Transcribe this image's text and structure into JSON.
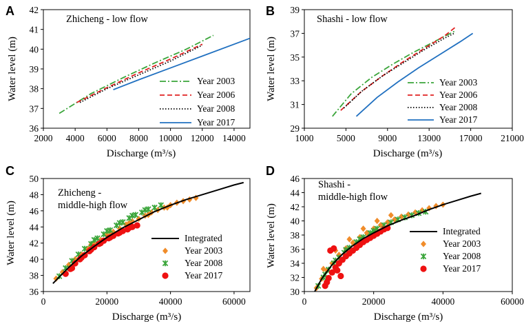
{
  "chart_data": [
    {
      "letter": "A",
      "type": "line",
      "title": "Zhicheng - low flow",
      "xlabel": "Discharge (m³/s)",
      "ylabel": "Water level (m)",
      "xlim": [
        2000,
        15000
      ],
      "ylim": [
        36,
        42
      ],
      "xticks": [
        2000,
        4000,
        6000,
        8000,
        10000,
        12000,
        14000
      ],
      "yticks": [
        36,
        37,
        38,
        39,
        40,
        41,
        42
      ],
      "legend_position": "bottom-right",
      "series": [
        {
          "name": "Year 2003",
          "style": "dashdot",
          "color": "#3aa53a",
          "x": [
            3000,
            5000,
            7000,
            9000,
            11000,
            12700
          ],
          "y": [
            36.75,
            37.75,
            38.55,
            39.3,
            40.0,
            40.7
          ]
        },
        {
          "name": "Year 2006",
          "style": "dash",
          "color": "#e02020",
          "x": [
            4100,
            6000,
            8000,
            10000,
            12000
          ],
          "y": [
            37.3,
            38.05,
            38.8,
            39.5,
            40.25
          ]
        },
        {
          "name": "Year 2008",
          "style": "dot",
          "color": "#000000",
          "x": [
            4300,
            6000,
            8000,
            10000,
            12000
          ],
          "y": [
            37.3,
            38.0,
            38.7,
            39.4,
            40.2
          ]
        },
        {
          "name": "Year 2017",
          "style": "solid",
          "color": "#2070c0",
          "x": [
            6400,
            8000,
            10000,
            12000,
            15000
          ],
          "y": [
            37.95,
            38.45,
            39.05,
            39.65,
            40.55
          ]
        }
      ]
    },
    {
      "letter": "B",
      "type": "line",
      "title": "Shashi - low flow",
      "xlabel": "Discharge (m³/s)",
      "ylabel": "Water level (m)",
      "xlim": [
        1000,
        21000
      ],
      "ylim": [
        29,
        39
      ],
      "xticks": [
        1000,
        5000,
        9000,
        13000,
        17000,
        21000
      ],
      "yticks": [
        29,
        31,
        33,
        35,
        37,
        39
      ],
      "legend_position": "bottom-right",
      "series": [
        {
          "name": "Year 2003",
          "style": "dashdot",
          "color": "#3aa53a",
          "x": [
            3700,
            5500,
            7500,
            9500,
            11500,
            13500,
            15500
          ],
          "y": [
            30.0,
            31.9,
            33.3,
            34.4,
            35.4,
            36.3,
            37.2
          ]
        },
        {
          "name": "Year 2006",
          "style": "dash",
          "color": "#e02020",
          "x": [
            4500,
            6500,
            8500,
            10500,
            12500,
            14500,
            15500
          ],
          "y": [
            30.5,
            32.1,
            33.4,
            34.6,
            35.7,
            36.8,
            37.5
          ]
        },
        {
          "name": "Year 2008",
          "style": "dot",
          "color": "#000000",
          "x": [
            4800,
            6500,
            8500,
            10500,
            12500,
            14500,
            15400
          ],
          "y": [
            30.7,
            32.1,
            33.4,
            34.5,
            35.6,
            36.6,
            37.0
          ]
        },
        {
          "name": "Year 2017",
          "style": "solid",
          "color": "#2070c0",
          "x": [
            6000,
            8000,
            10000,
            12000,
            14000,
            16000,
            17200
          ],
          "y": [
            30.0,
            31.6,
            32.9,
            34.1,
            35.2,
            36.3,
            37.0
          ]
        }
      ]
    },
    {
      "letter": "C",
      "type": "scatter",
      "title_lines": [
        "Zhicheng -",
        "middle-high flow"
      ],
      "xlabel": "Discharge (m³/s)",
      "ylabel": "Water level (m)",
      "xlim": [
        0,
        65000
      ],
      "ylim": [
        36,
        50
      ],
      "xticks": [
        0,
        20000,
        40000,
        60000
      ],
      "yticks": [
        36,
        38,
        40,
        42,
        44,
        46,
        48,
        50
      ],
      "legend_position": "right",
      "integrated": {
        "name": "Integrated",
        "color": "#000000",
        "x": [
          3000,
          5000,
          8000,
          12000,
          16000,
          20000,
          25000,
          30000,
          35000,
          40000,
          45000,
          50000,
          55000,
          60000,
          63000
        ],
        "y": [
          37.0,
          37.8,
          39.0,
          40.4,
          41.6,
          42.7,
          43.9,
          44.9,
          45.9,
          46.7,
          47.4,
          48.0,
          48.6,
          49.2,
          49.5
        ]
      },
      "series": [
        {
          "name": "Year 2003",
          "marker": "diamond",
          "color": "#f08c2a",
          "x": [
            4000,
            6000,
            8000,
            10000,
            12000,
            14000,
            16000,
            18000,
            20000,
            22000,
            24000,
            26000,
            28000,
            30000,
            32000,
            34000,
            36000,
            38000,
            40000,
            42000,
            44000,
            46000,
            48000,
            15000,
            21000,
            27000,
            33000,
            39000
          ],
          "y": [
            37.6,
            38.4,
            39.3,
            40.0,
            40.6,
            41.3,
            41.9,
            42.4,
            43.0,
            43.4,
            43.8,
            44.3,
            44.7,
            45.0,
            45.4,
            45.8,
            46.1,
            46.4,
            46.7,
            47.0,
            47.2,
            47.4,
            47.6,
            41.8,
            43.4,
            44.5,
            45.5,
            46.4
          ]
        },
        {
          "name": "Year 2008",
          "marker": "x",
          "color": "#3aa53a",
          "x": [
            5000,
            7000,
            9000,
            11000,
            13000,
            15000,
            17000,
            19000,
            21000,
            23000,
            25000,
            27000,
            29000,
            31000,
            33000,
            35000,
            37000,
            16000,
            20000,
            24000,
            28000,
            32000
          ],
          "y": [
            37.9,
            38.9,
            39.8,
            40.6,
            41.3,
            41.9,
            42.6,
            43.1,
            43.6,
            44.2,
            44.6,
            45.1,
            45.5,
            45.8,
            46.2,
            46.4,
            46.7,
            42.4,
            43.5,
            44.5,
            45.4,
            46.1
          ]
        },
        {
          "name": "Year 2017",
          "marker": "circle",
          "color": "#ee1111",
          "x": [
            7000,
            8500,
            10000,
            11500,
            13000,
            14500,
            16000,
            17500,
            19000,
            20500,
            22000,
            23500,
            25000,
            26500,
            28000,
            29500,
            9000,
            12000,
            15000,
            18000,
            21000,
            24000,
            27000
          ],
          "y": [
            38.2,
            38.8,
            39.5,
            40.0,
            40.5,
            41.0,
            41.5,
            41.9,
            42.3,
            42.6,
            42.9,
            43.2,
            43.5,
            43.7,
            44.0,
            44.2,
            38.9,
            40.2,
            41.2,
            42.0,
            42.7,
            43.3,
            43.9
          ]
        }
      ]
    },
    {
      "letter": "D",
      "type": "scatter",
      "title_lines": [
        "Shashi -",
        "middle-high flow"
      ],
      "xlabel": "Discharge (m³/s)",
      "ylabel": "Water level (m)",
      "xlim": [
        0,
        60000
      ],
      "ylim": [
        30,
        46
      ],
      "xticks": [
        0,
        20000,
        40000,
        60000
      ],
      "yticks": [
        30,
        32,
        34,
        36,
        38,
        40,
        42,
        44,
        46
      ],
      "legend_position": "right",
      "integrated": {
        "name": "Integrated",
        "color": "#000000",
        "x": [
          3000,
          5000,
          8000,
          11000,
          14000,
          17000,
          20000,
          24000,
          28000,
          32000,
          36000,
          40000,
          44000,
          48000,
          51000
        ],
        "y": [
          30.0,
          31.8,
          33.8,
          35.3,
          36.5,
          37.5,
          38.3,
          39.3,
          40.1,
          40.8,
          41.6,
          42.3,
          42.9,
          43.5,
          43.9
        ]
      },
      "series": [
        {
          "name": "Year 2003",
          "marker": "diamond",
          "color": "#f08c2a",
          "x": [
            3500,
            5000,
            6500,
            8000,
            10000,
            12000,
            14000,
            16000,
            18000,
            20000,
            22000,
            24000,
            26000,
            28000,
            30000,
            32000,
            34000,
            36000,
            38000,
            40000,
            5500,
            9000,
            13000,
            17000,
            21000,
            25000
          ],
          "y": [
            30.5,
            31.8,
            33.0,
            34.0,
            35.2,
            36.1,
            36.9,
            37.7,
            38.3,
            38.9,
            39.4,
            39.8,
            40.2,
            40.6,
            40.9,
            41.2,
            41.5,
            41.8,
            42.1,
            42.3,
            33.2,
            35.8,
            37.4,
            38.9,
            40.0,
            40.8
          ]
        },
        {
          "name": "Year 2008",
          "marker": "x",
          "color": "#3aa53a",
          "x": [
            4000,
            5500,
            7000,
            8500,
            10000,
            11500,
            13000,
            15000,
            17000,
            19000,
            21000,
            23000,
            25000,
            27000,
            29000,
            31000,
            33000,
            35000,
            6000,
            9000,
            12000,
            16000,
            20000
          ],
          "y": [
            30.8,
            32.0,
            33.1,
            34.0,
            34.8,
            35.5,
            36.2,
            37.0,
            37.7,
            38.3,
            38.9,
            39.4,
            39.8,
            40.2,
            40.5,
            40.8,
            41.1,
            41.3,
            32.4,
            34.4,
            35.9,
            37.4,
            38.6
          ]
        },
        {
          "name": "Year 2017",
          "marker": "circle",
          "color": "#ee1111",
          "x": [
            6000,
            7000,
            8000,
            9000,
            10000,
            11000,
            12000,
            13000,
            14000,
            15000,
            16000,
            17000,
            18000,
            19000,
            20000,
            21000,
            22000,
            23000,
            24000,
            7500,
            8500,
            9500,
            10500,
            6500
          ],
          "y": [
            30.8,
            31.9,
            32.7,
            33.4,
            34.0,
            34.5,
            35.0,
            35.4,
            35.8,
            36.2,
            36.6,
            37.0,
            37.3,
            37.6,
            37.9,
            38.2,
            38.5,
            38.8,
            39.0,
            35.8,
            36.1,
            33.0,
            32.2,
            31.3
          ]
        }
      ]
    }
  ]
}
